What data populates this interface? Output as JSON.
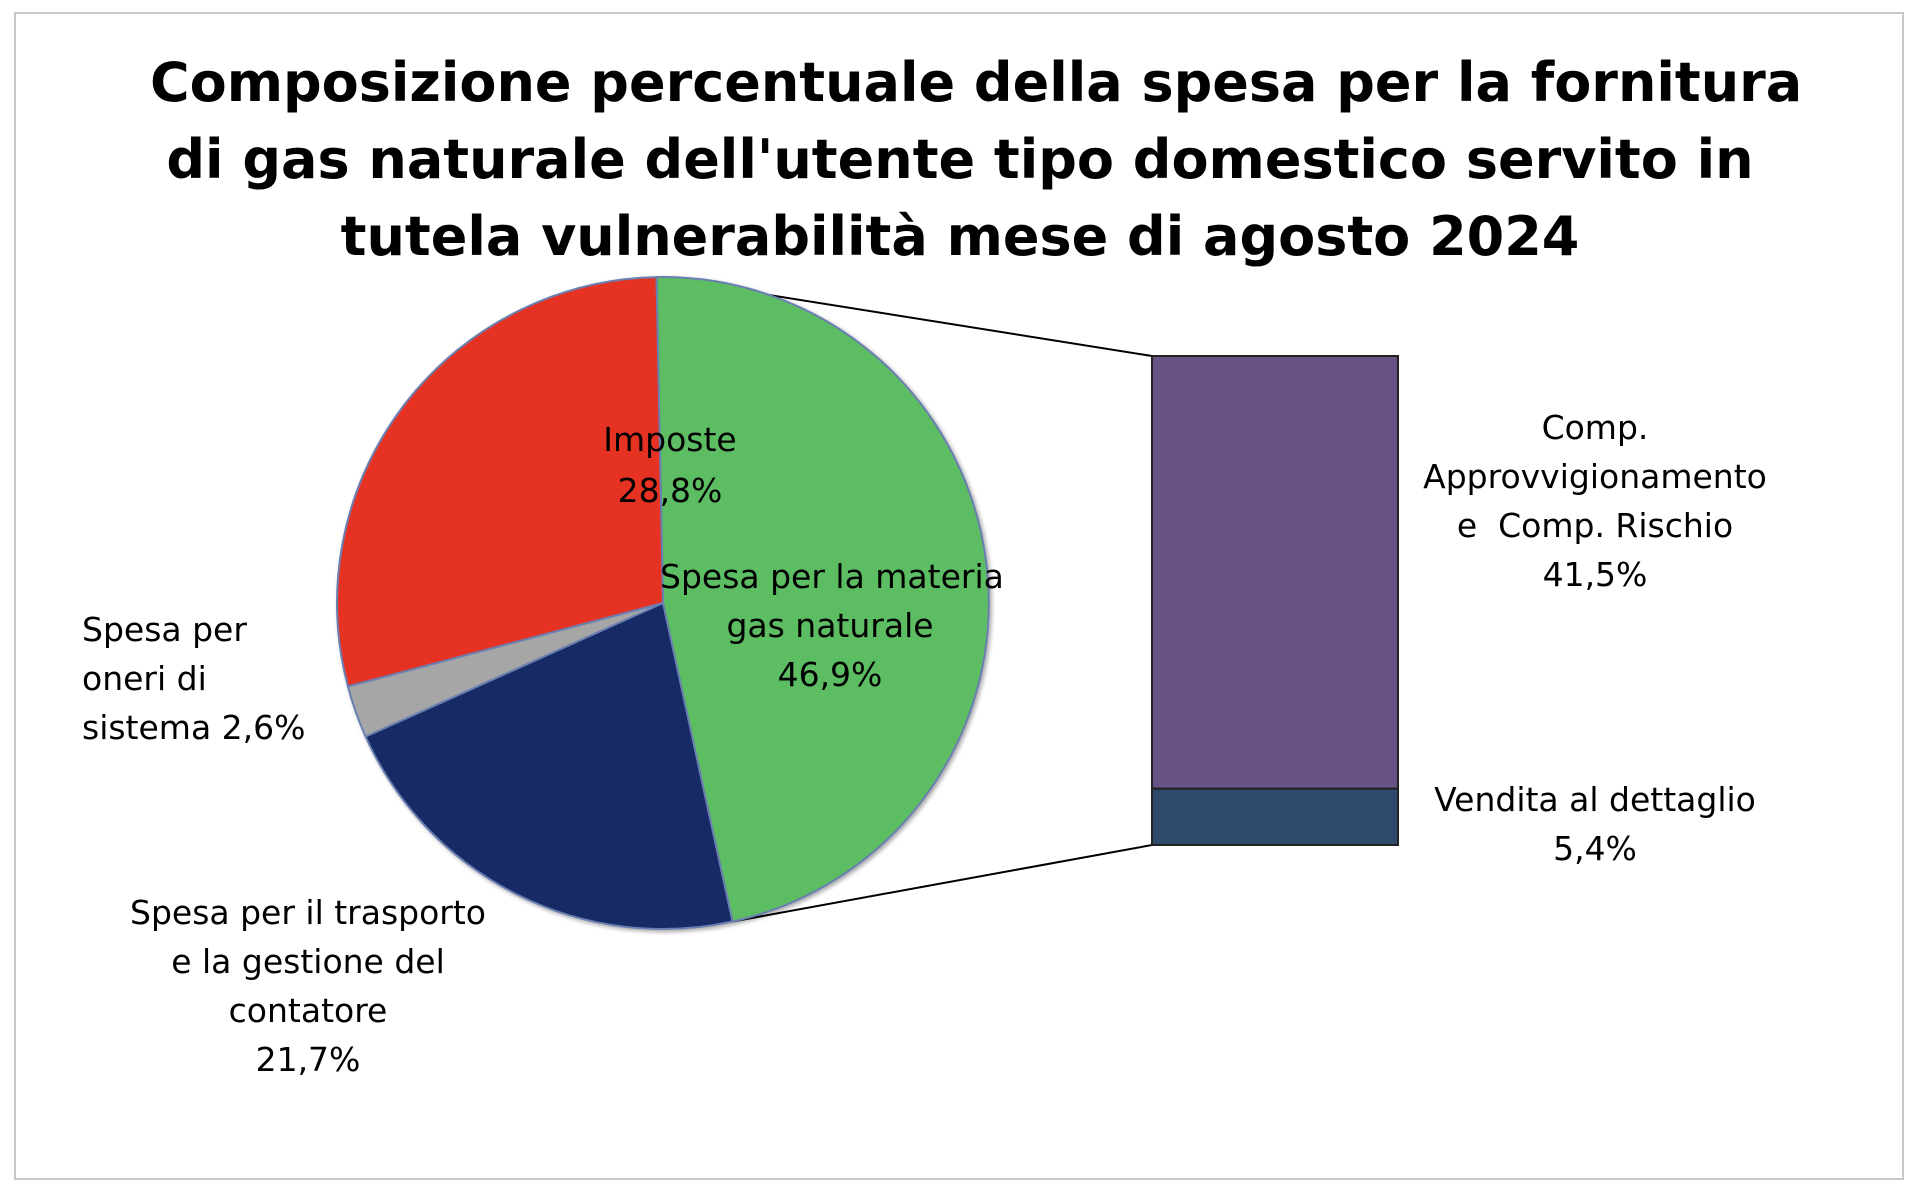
{
  "chart_data": {
    "type": "pie",
    "title_lines": [
      "Composizione percentuale della spesa per la fornitura",
      "di gas naturale dell'utente tipo domestico servito in",
      "tutela vulnerabilità mese di agosto 2024"
    ],
    "slices": [
      {
        "label_lines": [
          "Spesa per la materia",
          "gas naturale"
        ],
        "value_label": "46,9%",
        "value": 46.9,
        "color": "#5BBD62"
      },
      {
        "label_lines": [
          "Spesa per il trasporto",
          "e la gestione del",
          "contatore"
        ],
        "value_label": "21,7%",
        "value": 21.7,
        "color": "#142A66"
      },
      {
        "label_lines": [
          "Spesa per",
          "oneri di",
          "sistema 2,6%"
        ],
        "value_label": "",
        "value": 2.6,
        "color": "#A6A6A6"
      },
      {
        "label_lines": [
          "Imposte"
        ],
        "value_label": "28,8%",
        "value": 28.8,
        "color": "#E63324"
      }
    ],
    "breakdown_of": "Spesa per la materia gas naturale",
    "breakdown": [
      {
        "label_lines": [
          "Comp.",
          "Approvvigionamento",
          "e  Comp. Rischio"
        ],
        "value_label": "41,5%",
        "value": 41.5,
        "color": "#665383"
      },
      {
        "label_lines": [
          "Vendita al dettaglio"
        ],
        "value_label": "5,4%",
        "value": 5.4,
        "color": "#2E4A6B"
      }
    ]
  }
}
